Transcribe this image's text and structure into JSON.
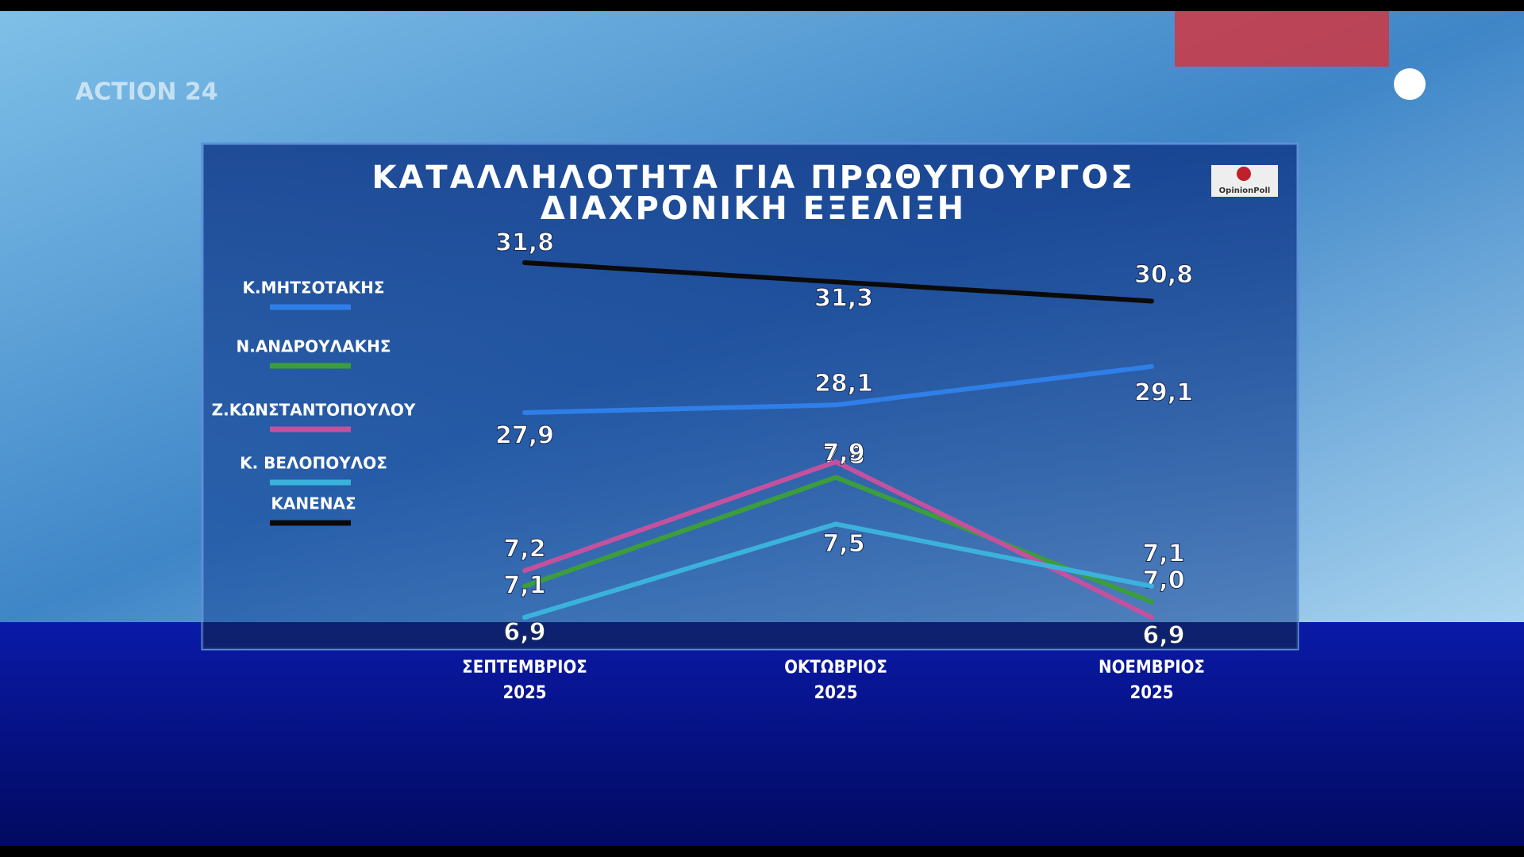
{
  "channel": "ACTION 24",
  "source": "OpinionPoll",
  "chart_data": {
    "type": "line",
    "title": "ΚΑΤΑΛΛΗΛΟΤΗΤΑ ΓΙΑ ΠΡΩΘΥΠΟΥΡΓΟΣ",
    "subtitle": "ΔΙΑΧΡΟΝΙΚΗ ΕΞΕΛΙΞΗ",
    "categories": [
      "ΣΕΠΤΕΜΒΡΙΟΣ 2025",
      "ΟΚΤΩΒΡΙΟΣ 2025",
      "ΝΟΕΜΒΡΙΟΣ 2025"
    ],
    "series": [
      {
        "name": "Κ.ΜΗΤΣΟΤΑΚΗΣ",
        "color": "#2f7fe8",
        "values": [
          27.9,
          28.1,
          29.1
        ],
        "value_labels": [
          "27,9",
          "28,1",
          "29,1"
        ]
      },
      {
        "name": "Ν.ΑΝΔΡΟΥΛΑΚΗΣ",
        "color": "#3c9d3c",
        "values": [
          7.1,
          7.8,
          7.0
        ],
        "value_labels": [
          "7,1",
          "7,8",
          "7,0"
        ]
      },
      {
        "name": "Ζ.ΚΩΝΣΤΑΝΤΟΠΟΥΛΟΥ",
        "color": "#c4519e",
        "values": [
          7.2,
          7.9,
          6.9
        ],
        "value_labels": [
          "7,2",
          "7,9",
          "6,9"
        ]
      },
      {
        "name": "Κ.  ΒΕΛΟΠΟΥΛΟΣ",
        "color": "#3bb2dc",
        "values": [
          6.9,
          7.5,
          7.1
        ],
        "value_labels": [
          "6,9",
          "7,5",
          "7,1"
        ]
      },
      {
        "name": "ΚΑΝΕΝΑΣ",
        "color": "#0a0a0a",
        "values": [
          31.8,
          31.3,
          30.8
        ],
        "value_labels": [
          "31,8",
          "31,3",
          "30,8"
        ]
      }
    ]
  }
}
